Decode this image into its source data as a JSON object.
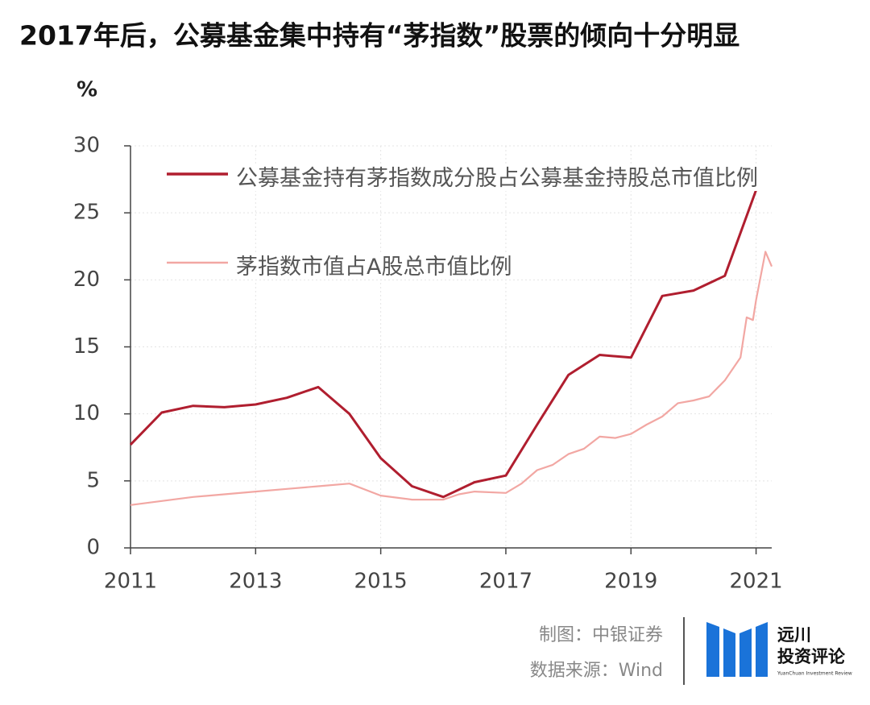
{
  "chart_data": {
    "type": "line",
    "title": "2017年后，公募基金集中持有“茅指数”股票的倾向十分明显",
    "y_label": "%",
    "xlim": [
      2011,
      2021.25
    ],
    "xticks": [
      2011,
      2013,
      2015,
      2017,
      2019,
      2021
    ],
    "ylim": [
      0,
      30
    ],
    "yticks": [
      0,
      5,
      10,
      15,
      20,
      25,
      30
    ],
    "grid": true,
    "legend": "top-left",
    "series": [
      {
        "name": "公募基金持有茅指数成分股占公募基金持股总市值比例",
        "color": "#b01e2f",
        "x": [
          2011,
          2011.5,
          2012,
          2012.5,
          2013,
          2013.5,
          2014,
          2014.5,
          2015,
          2015.5,
          2016,
          2016.5,
          2017,
          2017.5,
          2018,
          2018.5,
          2019,
          2019.5,
          2020,
          2020.5,
          2021
        ],
        "values": [
          7.7,
          10.1,
          10.6,
          10.5,
          10.7,
          11.2,
          12.0,
          10.0,
          6.7,
          4.6,
          3.8,
          4.9,
          5.4,
          9.2,
          12.9,
          14.4,
          14.2,
          18.8,
          19.2,
          20.3,
          26.7
        ]
      },
      {
        "name": "茅指数市值占A股总市值比例",
        "color": "#f2a7a3",
        "x": [
          2011,
          2011.5,
          2012,
          2012.5,
          2013,
          2013.5,
          2014,
          2014.5,
          2015,
          2015.5,
          2016,
          2016.25,
          2016.5,
          2017,
          2017.25,
          2017.5,
          2017.75,
          2018,
          2018.25,
          2018.5,
          2018.75,
          2019,
          2019.25,
          2019.5,
          2019.75,
          2020,
          2020.25,
          2020.5,
          2020.75,
          2020.85,
          2020.95,
          2021,
          2021.15,
          2021.25
        ],
        "values": [
          3.2,
          3.5,
          3.8,
          4.0,
          4.2,
          4.4,
          4.6,
          4.8,
          3.9,
          3.6,
          3.6,
          4.0,
          4.2,
          4.1,
          4.8,
          5.8,
          6.2,
          7.0,
          7.4,
          8.3,
          8.2,
          8.5,
          9.2,
          9.8,
          10.8,
          11.0,
          11.3,
          12.5,
          14.2,
          17.2,
          17.0,
          18.5,
          22.1,
          21.0
        ]
      }
    ]
  },
  "footer": {
    "credit": "制图：中银证券",
    "source": "数据来源：Wind",
    "logo_line1": "远川",
    "logo_line2": "投资评论",
    "logo_en": "YuanChuan Investment Review"
  }
}
